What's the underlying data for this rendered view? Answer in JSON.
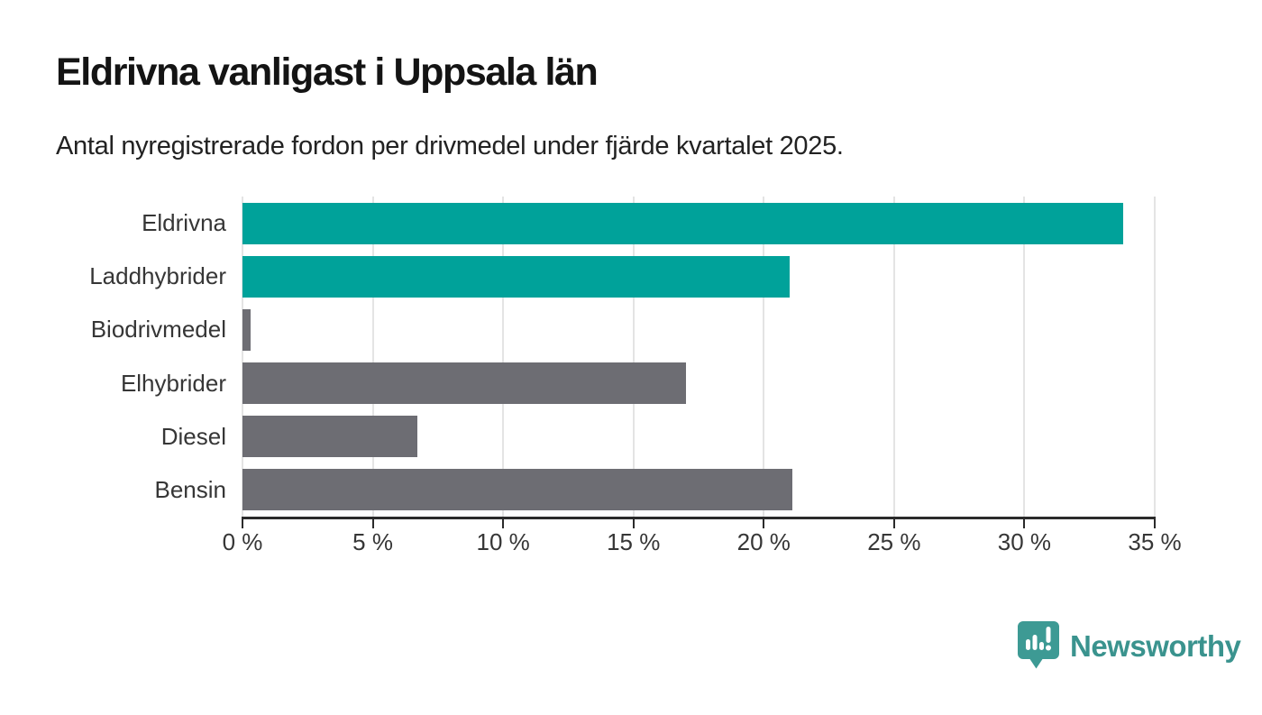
{
  "header": {
    "title": "Eldrivna vanligast i Uppsala län",
    "subtitle": "Antal nyregistrerade fordon per drivmedel under fjärde kvartalet 2025."
  },
  "chart_data": {
    "type": "bar",
    "orientation": "horizontal",
    "categories": [
      "Eldrivna",
      "Laddhybrider",
      "Biodrivmedel",
      "Elhybrider",
      "Diesel",
      "Bensin"
    ],
    "values": [
      33.8,
      21.0,
      0.3,
      17.0,
      6.7,
      21.1
    ],
    "bar_colors": [
      "#00a29a",
      "#00a29a",
      "#6d6d73",
      "#6d6d73",
      "#6d6d73",
      "#6d6d73"
    ],
    "title": "Eldrivna vanligast i Uppsala län",
    "xlabel": "",
    "ylabel": "",
    "xlim": [
      0,
      35
    ],
    "x_ticks": [
      0,
      5,
      10,
      15,
      20,
      25,
      30,
      35
    ],
    "x_tick_labels": [
      "0 %",
      "5 %",
      "10 %",
      "15 %",
      "20 %",
      "25 %",
      "30 %",
      "35 %"
    ],
    "grid": "vertical",
    "gridline_color": "#e4e4e4",
    "axis_color": "#2b2b2b",
    "label_color": "#363636",
    "legend": "none"
  },
  "colors": {
    "accent_teal": "#00a29a",
    "neutral_gray": "#6d6d73",
    "background": "#ffffff"
  },
  "branding": {
    "logo_text": "Newsworthy",
    "logo_text_color": "#3a938e",
    "logo_badge_color": "#3d9a94",
    "logo_icon": "bar-chart-speech-bubble-icon"
  }
}
